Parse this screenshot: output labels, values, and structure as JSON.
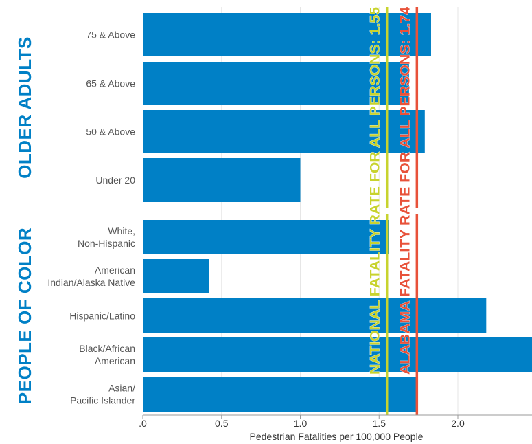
{
  "chart_data": {
    "type": "bar",
    "orientation": "horizontal",
    "xlabel": "Pedestrian Fatalities per 100,000 People",
    "xlim": [
      0,
      2.48
    ],
    "xticks": [
      {
        "value": 0,
        "label": ".0"
      },
      {
        "value": 0.5,
        "label": "0.5"
      },
      {
        "value": 1.0,
        "label": "1.0"
      },
      {
        "value": 1.5,
        "label": "1.5"
      },
      {
        "value": 2.0,
        "label": "2.0"
      }
    ],
    "grid": true,
    "bar_color": "#0080c6",
    "groups": [
      {
        "name": "OLDER ADULTS",
        "color": "#0080c6",
        "categories": [
          {
            "label": "75 & Above",
            "value": 1.83
          },
          {
            "label": "65 & Above",
            "value": 1.69
          },
          {
            "label": "50 & Above",
            "value": 1.79
          },
          {
            "label": "Under 20",
            "value": 1.0
          }
        ]
      },
      {
        "name": "PEOPLE OF COLOR",
        "color": "#0080c6",
        "categories": [
          {
            "label": "White,\nNon-Hispanic",
            "value": 1.56
          },
          {
            "label": "American\nIndian/Alaska Native",
            "value": 0.42
          },
          {
            "label": "Hispanic/Latino",
            "value": 2.18
          },
          {
            "label": "Black/African\nAmerican",
            "value": 2.55
          },
          {
            "label": "Asian/\nPacific Islander",
            "value": 1.74
          }
        ]
      }
    ],
    "reference_lines": [
      {
        "label": "NATIONAL FATALITY RATE FOR ALL PERSONS: 1.55",
        "value": 1.55,
        "color": "#c8d32e"
      },
      {
        "label": "ALABAMA FATALITY RATE FOR ALL PERSONS: 1.74",
        "value": 1.74,
        "color": "#e8523a"
      }
    ]
  }
}
